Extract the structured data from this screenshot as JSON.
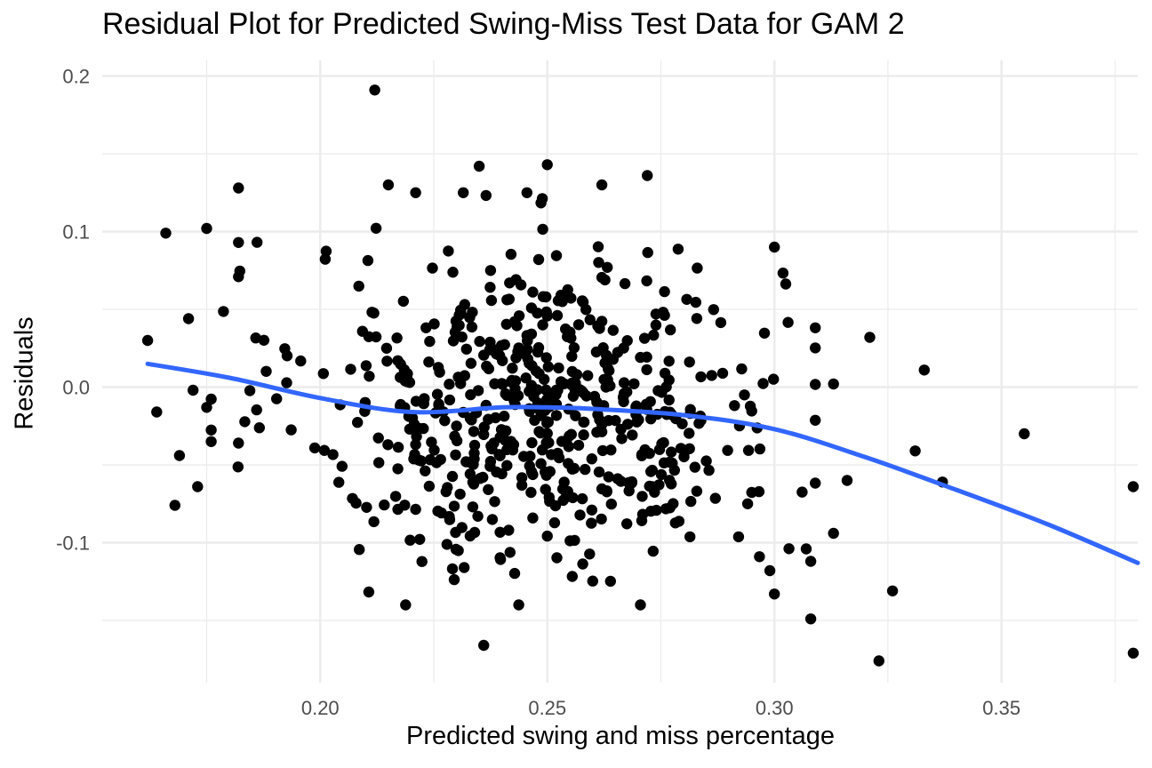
{
  "chart_data": {
    "type": "scatter",
    "title": "Residual Plot for Predicted Swing-Miss Test Data for GAM 2",
    "xlabel": "Predicted swing and miss percentage",
    "ylabel": "Residuals",
    "xlim": [
      0.152,
      0.38
    ],
    "ylim": [
      -0.19,
      0.21
    ],
    "x_ticks": [
      0.2,
      0.25,
      0.3,
      0.35
    ],
    "x_tick_labels": [
      "0.20",
      "0.25",
      "0.30",
      "0.35"
    ],
    "y_ticks": [
      -0.1,
      0.0,
      0.1,
      0.2
    ],
    "y_tick_labels": [
      "-0.1",
      "0.0",
      "0.1",
      "0.2"
    ],
    "grid": true,
    "colors": {
      "points": "#000000",
      "smooth": "#3366FF",
      "grid": "#EBEBEB"
    },
    "outliers": [
      [
        0.212,
        0.191
      ],
      [
        0.162,
        0.03
      ],
      [
        0.164,
        -0.016
      ],
      [
        0.166,
        0.099
      ],
      [
        0.168,
        -0.076
      ],
      [
        0.169,
        -0.044
      ],
      [
        0.171,
        0.044
      ],
      [
        0.172,
        -0.002
      ],
      [
        0.173,
        -0.064
      ],
      [
        0.175,
        -0.013
      ],
      [
        0.175,
        0.102
      ],
      [
        0.176,
        -0.035
      ],
      [
        0.182,
        0.128
      ],
      [
        0.182,
        0.093
      ],
      [
        0.182,
        0.071
      ],
      [
        0.182,
        -0.036
      ],
      [
        0.236,
        -0.166
      ],
      [
        0.323,
        -0.176
      ],
      [
        0.321,
        0.032
      ],
      [
        0.326,
        -0.131
      ],
      [
        0.331,
        -0.041
      ],
      [
        0.333,
        0.011
      ],
      [
        0.337,
        -0.061
      ],
      [
        0.355,
        -0.03
      ],
      [
        0.379,
        -0.064
      ],
      [
        0.379,
        -0.171
      ],
      [
        0.25,
        0.143
      ],
      [
        0.235,
        0.142
      ],
      [
        0.272,
        0.136
      ],
      [
        0.262,
        0.13
      ],
      [
        0.215,
        0.13
      ],
      [
        0.3,
        0.09
      ],
      [
        0.308,
        -0.149
      ],
      [
        0.3,
        -0.133
      ],
      [
        0.313,
        0.002
      ],
      [
        0.316,
        -0.06
      ],
      [
        0.313,
        -0.094
      ],
      [
        0.308,
        -0.112
      ],
      [
        0.307,
        -0.104
      ],
      [
        0.299,
        -0.118
      ]
    ],
    "n_points": 640,
    "smooth_curve": {
      "x": [
        0.162,
        0.18,
        0.2,
        0.22,
        0.24,
        0.25,
        0.26,
        0.28,
        0.3,
        0.32,
        0.34,
        0.36,
        0.38
      ],
      "y": [
        0.015,
        0.006,
        -0.007,
        -0.016,
        -0.013,
        -0.013,
        -0.014,
        -0.018,
        -0.027,
        -0.045,
        -0.066,
        -0.088,
        -0.113
      ]
    }
  }
}
